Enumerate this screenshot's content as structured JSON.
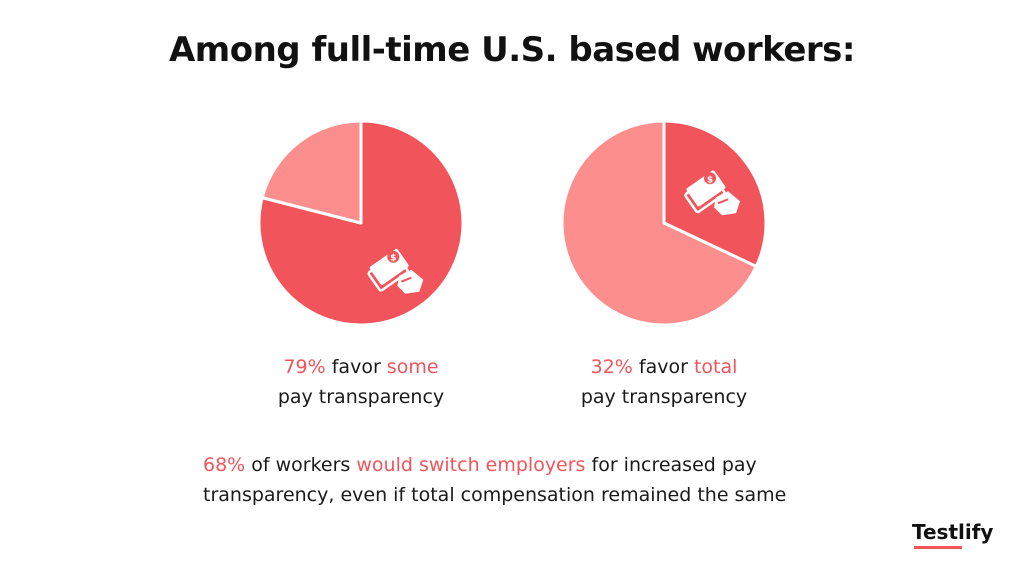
{
  "title": "Among full-time U.S. based workers:",
  "chart_data": [
    {
      "type": "pie",
      "values": [
        79,
        21
      ],
      "colors": [
        "#f2545b",
        "#fc8e8e"
      ],
      "icon": "money-hand-icon",
      "caption": {
        "percent": "79%",
        "mid": " favor ",
        "keyword": "some",
        "line2": "pay transparency"
      }
    },
    {
      "type": "pie",
      "values": [
        32,
        68
      ],
      "colors": [
        "#f2545b",
        "#fc8e8e"
      ],
      "icon": "money-hand-icon",
      "caption": {
        "percent": "32%",
        "mid": " favor ",
        "keyword": "total",
        "line2": "pay transparency"
      }
    }
  ],
  "note": {
    "percent": "68%",
    "part1": " of workers ",
    "highlight": "would switch employers",
    "part2": " for increased pay transparency, even if total compensation remained the same"
  },
  "brand": "Testlify"
}
